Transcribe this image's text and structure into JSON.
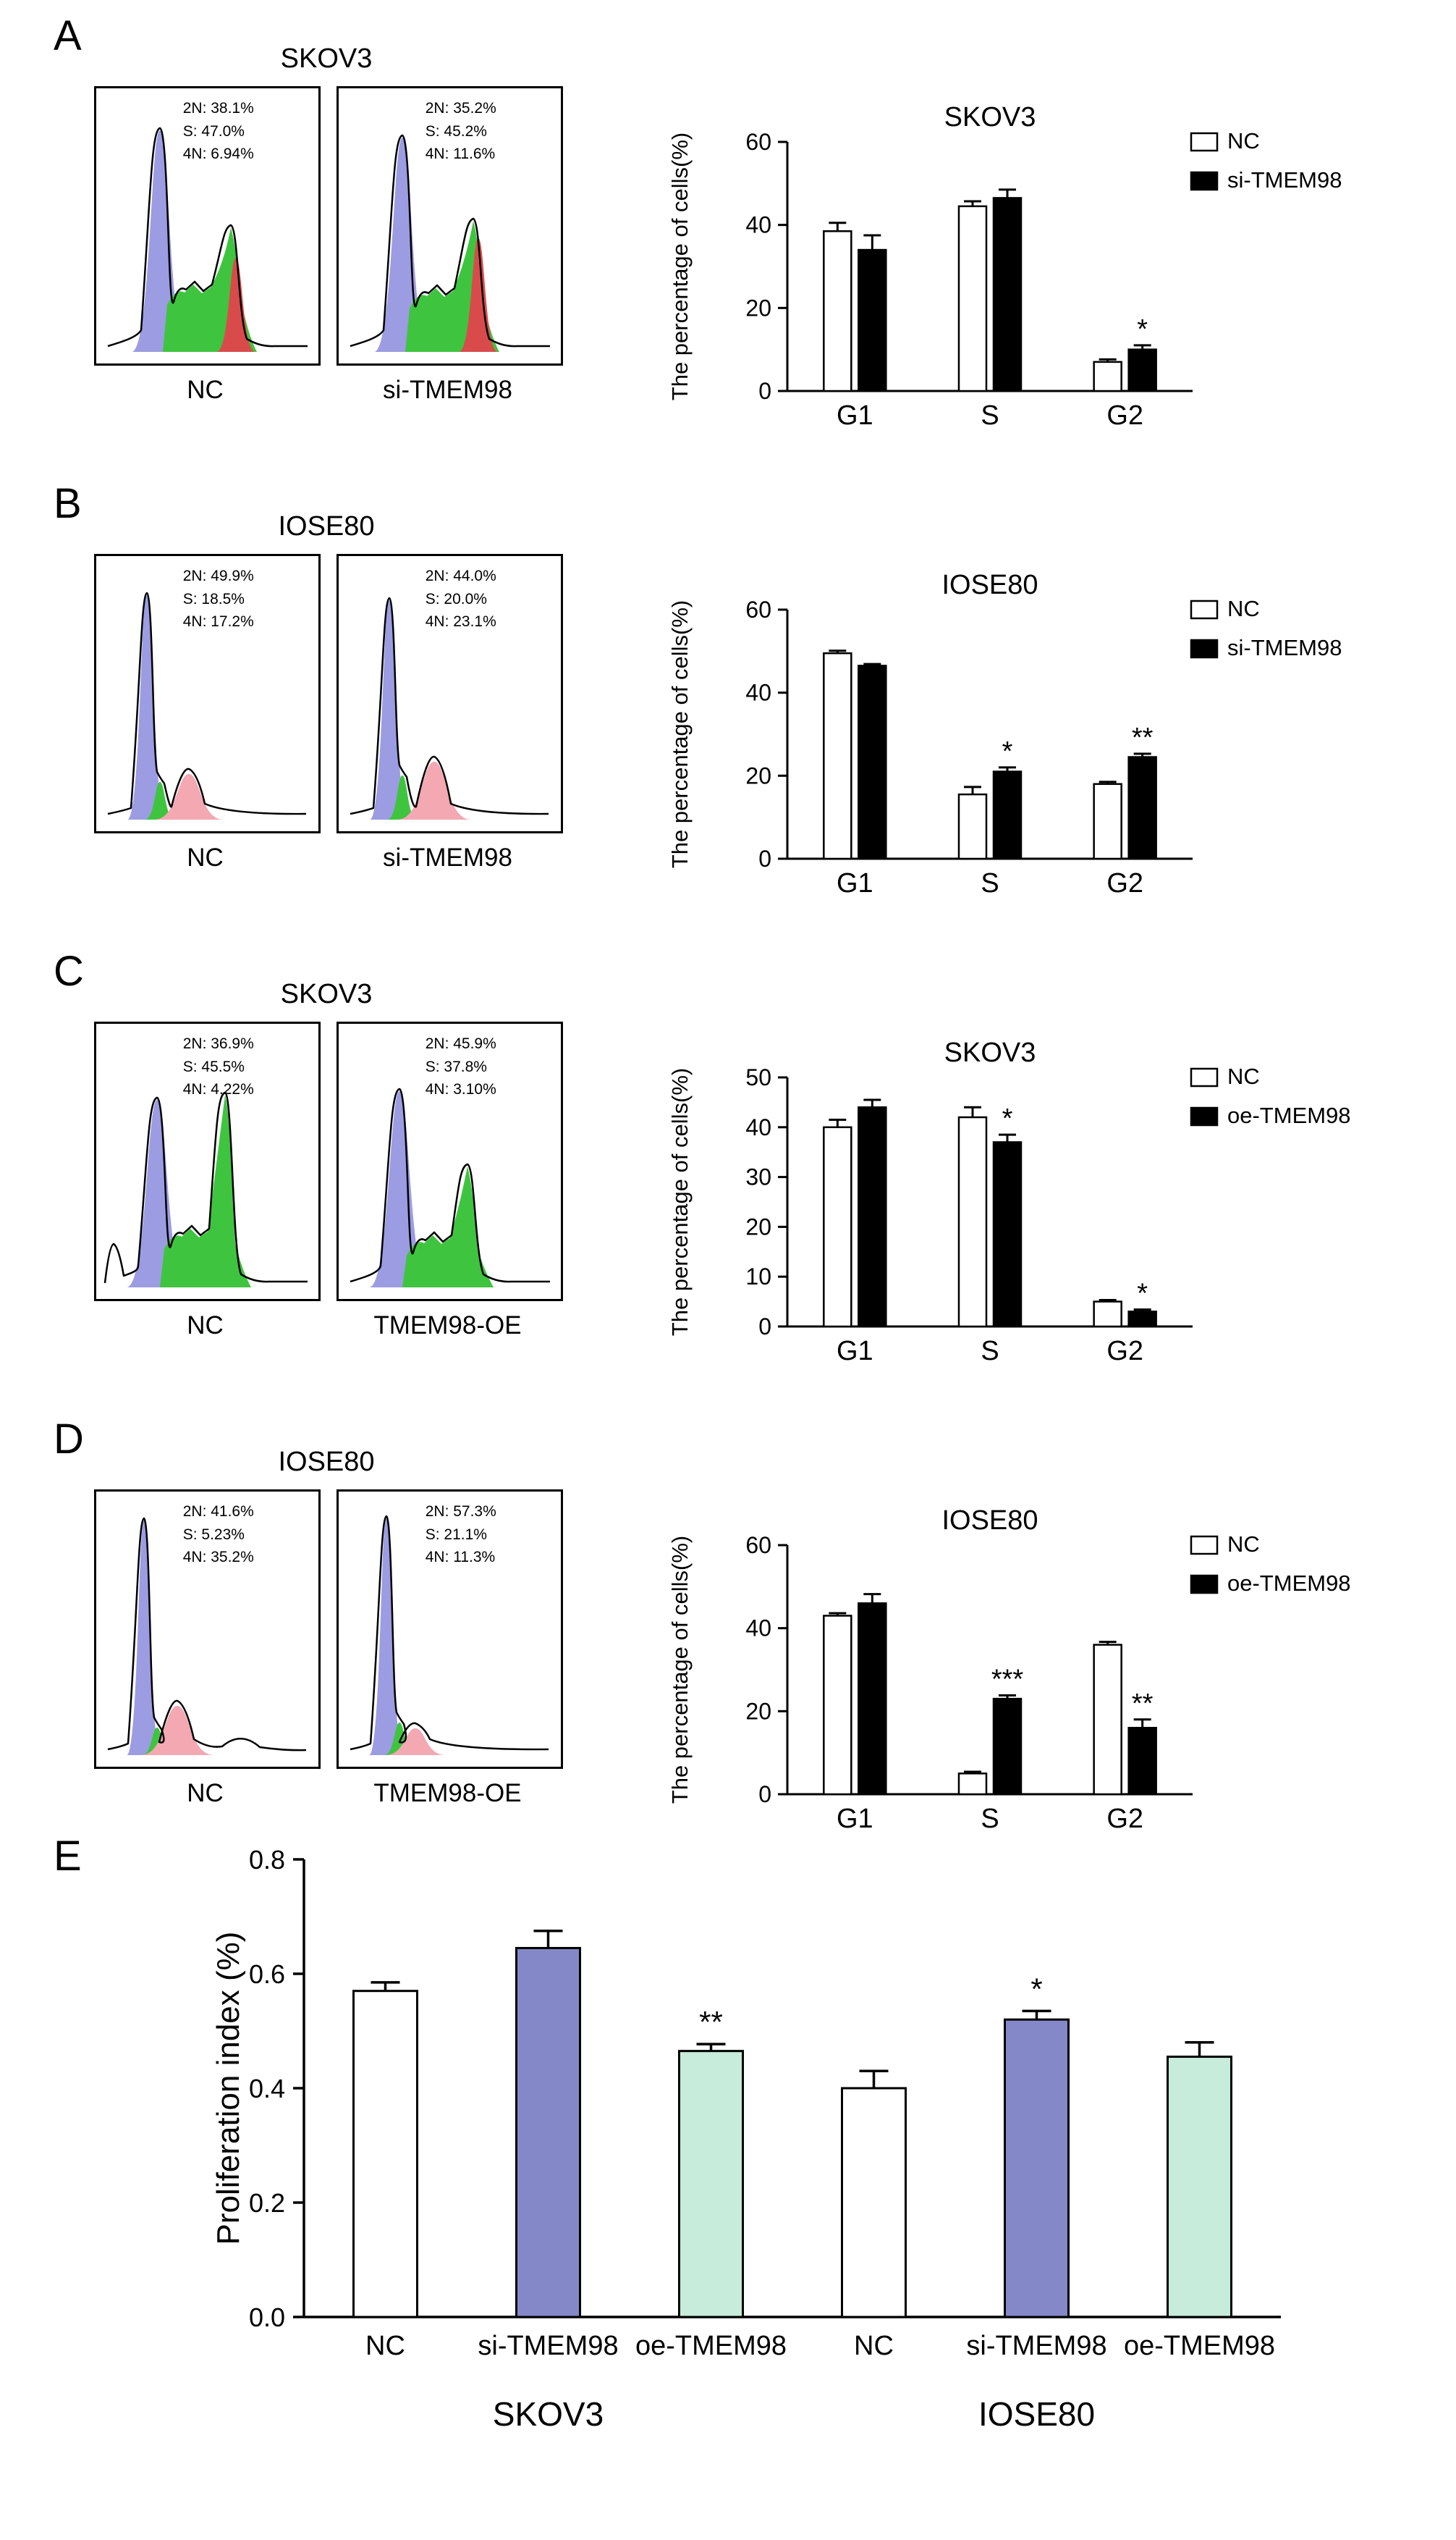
{
  "figure": {
    "panels": [
      {
        "label": "A",
        "flow_title": "SKOV3",
        "flow": [
          {
            "caption": "NC",
            "stats": [
              "2N: 38.1%",
              "S: 47.0%",
              "4N: 6.94%"
            ]
          },
          {
            "caption": "si-TMEM98",
            "stats": [
              "2N: 35.2%",
              "S: 45.2%",
              "4N: 11.6%"
            ]
          }
        ]
      },
      {
        "label": "B",
        "flow_title": "IOSE80",
        "flow": [
          {
            "caption": "NC",
            "stats": [
              "2N: 49.9%",
              "S: 18.5%",
              "4N: 17.2%"
            ]
          },
          {
            "caption": "si-TMEM98",
            "stats": [
              "2N: 44.0%",
              "S: 20.0%",
              "4N: 23.1%"
            ]
          }
        ]
      },
      {
        "label": "C",
        "flow_title": "SKOV3",
        "flow": [
          {
            "caption": "NC",
            "stats": [
              "2N: 36.9%",
              "S: 45.5%",
              "4N: 4.22%"
            ]
          },
          {
            "caption": "TMEM98-OE",
            "stats": [
              "2N: 45.9%",
              "S: 37.8%",
              "4N: 3.10%"
            ]
          }
        ]
      },
      {
        "label": "D",
        "flow_title": "IOSE80",
        "flow": [
          {
            "caption": "NC",
            "stats": [
              "2N: 41.6%",
              "S: 5.23%",
              "4N: 35.2%"
            ]
          },
          {
            "caption": "TMEM98-OE",
            "stats": [
              "2N: 57.3%",
              "S: 21.1%",
              "4N: 11.3%"
            ]
          }
        ]
      },
      {
        "label": "E"
      }
    ],
    "colors": {
      "g1_fill": "#9c9ce2",
      "s_fill": "#3fc43f",
      "g2_pink_fill": "#f3a8b2",
      "g2_red_fill": "#d94b4b",
      "nc_bar": "#ffffff",
      "treatment_bar": "#000000",
      "si_bar_e": "#8588c8",
      "oe_bar_e": "#c7ecdc"
    }
  },
  "chart_data": [
    {
      "id": "A",
      "type": "bar",
      "title": "SKOV3",
      "ylabel": "The percentage of cells(%)",
      "ylim": [
        0,
        60
      ],
      "yticks": [
        0,
        20,
        40,
        60
      ],
      "categories": [
        "G1",
        "S",
        "G2"
      ],
      "series": [
        {
          "name": "NC",
          "color": "#ffffff",
          "values": [
            38.5,
            44.5,
            7.0
          ],
          "errors": [
            2.0,
            1.2,
            0.6
          ],
          "annotations": [
            "",
            "",
            ""
          ]
        },
        {
          "name": "si-TMEM98",
          "color": "#000000",
          "values": [
            34.0,
            46.5,
            10.0
          ],
          "errors": [
            3.5,
            2.0,
            1.0
          ],
          "annotations": [
            "",
            "",
            "*"
          ]
        }
      ],
      "legend_position": "right"
    },
    {
      "id": "B",
      "type": "bar",
      "title": "IOSE80",
      "ylabel": "The percentage of cells(%)",
      "ylim": [
        0,
        60
      ],
      "yticks": [
        0,
        20,
        40,
        60
      ],
      "categories": [
        "G1",
        "S",
        "G2"
      ],
      "series": [
        {
          "name": "NC",
          "color": "#ffffff",
          "values": [
            49.5,
            15.5,
            18.0
          ],
          "errors": [
            0.6,
            1.8,
            0.5
          ],
          "annotations": [
            "",
            "",
            ""
          ]
        },
        {
          "name": "si-TMEM98",
          "color": "#000000",
          "values": [
            46.5,
            21.0,
            24.5
          ],
          "errors": [
            0.4,
            1.0,
            0.8
          ],
          "annotations": [
            "",
            "*",
            "**"
          ]
        }
      ],
      "legend_position": "right"
    },
    {
      "id": "C",
      "type": "bar",
      "title": "SKOV3",
      "ylabel": "The percentage of cells(%)",
      "ylim": [
        0,
        50
      ],
      "yticks": [
        0,
        10,
        20,
        30,
        40,
        50
      ],
      "categories": [
        "G1",
        "S",
        "G2"
      ],
      "series": [
        {
          "name": "NC",
          "color": "#ffffff",
          "values": [
            40.0,
            42.0,
            5.0
          ],
          "errors": [
            1.5,
            2.0,
            0.3
          ],
          "annotations": [
            "",
            "",
            ""
          ]
        },
        {
          "name": "oe-TMEM98",
          "color": "#000000",
          "values": [
            44.0,
            37.0,
            3.0
          ],
          "errors": [
            1.5,
            1.5,
            0.4
          ],
          "annotations": [
            "",
            "*",
            "*"
          ]
        }
      ],
      "legend_position": "right"
    },
    {
      "id": "D",
      "type": "bar",
      "title": "IOSE80",
      "ylabel": "The percentage of cells(%)",
      "ylim": [
        0,
        60
      ],
      "yticks": [
        0,
        20,
        40,
        60
      ],
      "categories": [
        "G1",
        "S",
        "G2"
      ],
      "series": [
        {
          "name": "NC",
          "color": "#ffffff",
          "values": [
            43.0,
            5.0,
            36.0
          ],
          "errors": [
            0.6,
            0.4,
            0.7
          ],
          "annotations": [
            "",
            "",
            ""
          ]
        },
        {
          "name": "oe-TMEM98",
          "color": "#000000",
          "values": [
            46.0,
            23.0,
            16.0
          ],
          "errors": [
            2.2,
            0.8,
            2.0
          ],
          "annotations": [
            "",
            "***",
            "**"
          ]
        }
      ],
      "legend_position": "right"
    },
    {
      "id": "E",
      "type": "bar",
      "title": "",
      "ylabel": "Proliferation index (%)",
      "ylim": [
        0,
        0.8
      ],
      "yticks": [
        0.0,
        0.2,
        0.4,
        0.6,
        0.8
      ],
      "categories": [
        "NC",
        "si-TMEM98",
        "oe-TMEM98",
        "NC",
        "si-TMEM98",
        "oe-TMEM98"
      ],
      "values": [
        0.57,
        0.645,
        0.465,
        0.4,
        0.52,
        0.455
      ],
      "errors": [
        0.015,
        0.03,
        0.012,
        0.03,
        0.015,
        0.025
      ],
      "bar_colors": [
        "#ffffff",
        "#8588c8",
        "#c7ecdc",
        "#ffffff",
        "#8588c8",
        "#c7ecdc"
      ],
      "annotations": [
        "",
        "",
        "**",
        "",
        "*",
        ""
      ],
      "groups": [
        {
          "label": "SKOV3",
          "span": [
            0,
            2
          ]
        },
        {
          "label": "IOSE80",
          "span": [
            3,
            5
          ]
        }
      ]
    }
  ]
}
